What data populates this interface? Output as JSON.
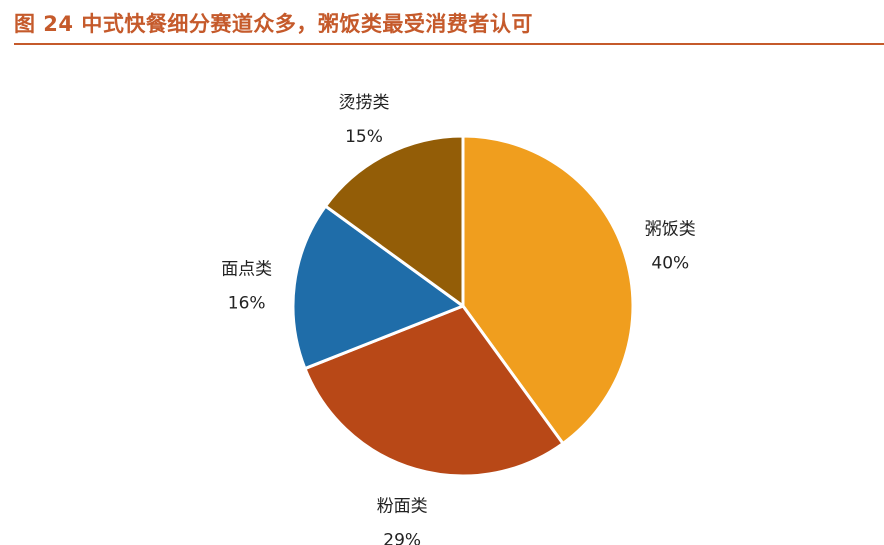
{
  "figure": {
    "title": "图 24 中式快餐细分赛道众多，粥饭类最受消费者认可"
  },
  "chart_data": {
    "type": "pie",
    "title": "",
    "start_angle_deg": 0,
    "direction": "clockwise",
    "slices": [
      {
        "name": "粥饭类",
        "value": 40,
        "label": "40%",
        "color": "#F09E1E"
      },
      {
        "name": "粉面类",
        "value": 29,
        "label": "29%",
        "color": "#B84817"
      },
      {
        "name": "面点类",
        "value": 16,
        "label": "16%",
        "color": "#1F6DA9"
      },
      {
        "name": "烫捞类",
        "value": 15,
        "label": "15%",
        "color": "#935D07"
      }
    ],
    "legend": "none",
    "label_placement": "outside"
  }
}
